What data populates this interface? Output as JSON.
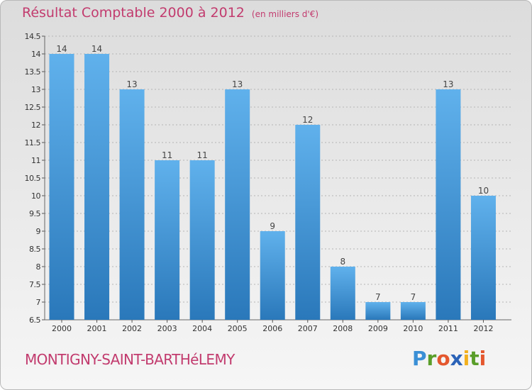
{
  "header": {
    "title": "Résultat Comptable 2000 à 2012",
    "unit": "(en milliers d'€)"
  },
  "footer": {
    "commune": "MONTIGNY-SAINT-BARTHéLEMY",
    "logo": {
      "letters": [
        "P",
        "r",
        "o",
        "x",
        "i",
        "t",
        "i"
      ],
      "colors": [
        "#3a8fd6",
        "#5a9e2a",
        "#e4572e",
        "#2b63b8",
        "#f2b01e",
        "#5a9e2a",
        "#e4572e"
      ]
    }
  },
  "colors": {
    "bar": "#4a9fe0",
    "bar_light": "#60b1ec",
    "bar_dark": "#2a78ba",
    "title": "#c23b6e"
  },
  "chart_data": {
    "type": "bar",
    "title": "Résultat Comptable 2000 à 2012",
    "subtitle": "(en milliers d'€)",
    "xlabel": "",
    "ylabel": "",
    "categories": [
      "2000",
      "2001",
      "2002",
      "2003",
      "2004",
      "2005",
      "2006",
      "2007",
      "2008",
      "2009",
      "2010",
      "2011",
      "2012"
    ],
    "values": [
      14,
      14,
      13,
      11,
      11,
      13,
      9,
      12,
      8,
      7,
      7,
      13,
      10
    ],
    "labels": [
      "14",
      "14",
      "13",
      "11",
      "11",
      "13",
      "9",
      "12",
      "8",
      "7",
      "7",
      "13",
      "10"
    ],
    "ylim": [
      6.5,
      14.5
    ],
    "yticks": [
      6.5,
      7,
      7.5,
      8,
      8.5,
      9,
      9.5,
      10,
      10.5,
      11,
      11.5,
      12,
      12.5,
      13,
      13.5,
      14,
      14.5
    ],
    "ytick_labels": [
      "6.5",
      "7",
      "7.5",
      "8",
      "8.5",
      "9",
      "9.5",
      "10",
      "10.5",
      "11",
      "11.5",
      "12",
      "12.5",
      "13",
      "13.5",
      "14",
      "14.5"
    ],
    "grid": true
  }
}
